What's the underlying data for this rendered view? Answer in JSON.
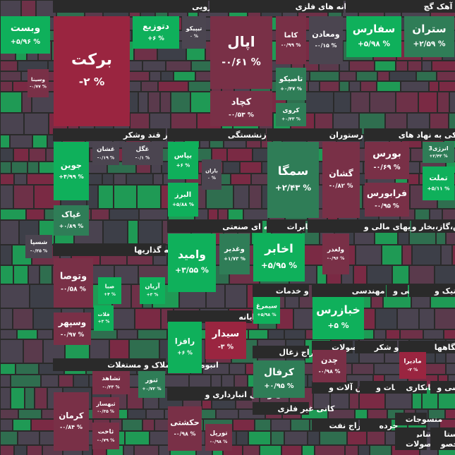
{
  "chart_data": {
    "type": "treemap",
    "groups": [
      "دارویی",
      "استخراج کانه های فلزی",
      "سیمان آهک گچ",
      "غذایی بجز قند وشکر",
      "بیمه و بازنشستگی",
      "هتل و رستوران",
      "فعالیتهای کمکی به نهاد های",
      "سرمایه گذاریها",
      "چندرشته ای صنعتی",
      "مخابرات",
      "واسطه گریهای مالی و",
      "عرضه برق،گاز،بخار و",
      "زراعت و خدمات",
      "فعالیت مهندسی",
      "فنی و",
      "لاستیک و",
      "رایانه",
      "انبوه سازی املاک و مستغلات",
      "استخراج زغال",
      "محصولات",
      "قند و شکر",
      "محصولات",
      "دستگاهها",
      "حمل و نقل انبارداری و",
      "ماشین آلات و",
      "اطلاعات و",
      "پیمانکاری",
      "کاشی و",
      "کانی غیر فلزی",
      "استخراج نفت",
      "خرده",
      "سایر",
      "استا",
      "منسوجات",
      "محصولات",
      "محصو"
    ],
    "categories": [
      "وبست",
      "برکت",
      "دتوزیع",
      "تیپیکو",
      "وسینا",
      "اپال",
      "کاما",
      "ومعادن",
      "تاصیکو",
      "کچاد",
      "کروی",
      "سفارس",
      "ستران",
      "جوین",
      "غشان",
      "غگل",
      "غپاک",
      "بپاس",
      "باران",
      "البرز",
      "سمگا",
      "گشان",
      "بورس",
      "انرژی3",
      "فرابورس",
      "تملت",
      "شسپا",
      "وتوصا",
      "صبا",
      "آریان",
      "فلات",
      "وسپهر",
      "وامید",
      "وغدیر",
      "اخابر",
      "ولغدر",
      "سیمرغ",
      "خبازرس",
      "سیدار",
      "رافزا",
      "چدن",
      "ماديرا",
      "کرفال",
      "ثنور",
      "تشاهد",
      "ثبهساز",
      "ثاخت",
      "کرمان",
      "حکشتی",
      "تورپل"
    ],
    "values": [
      5.96,
      -2,
      6,
      0,
      -0.77,
      -0.61,
      -0.99,
      -0.15,
      0.47,
      -0.53,
      0.43,
      5.98,
      2.59,
      4.99,
      -0.19,
      -0.1,
      0.89,
      6,
      0,
      5.88,
      2.43,
      -0.82,
      -0.69,
      2.43,
      -0.95,
      5.11,
      -0.25,
      -0.58,
      4,
      3,
      3,
      -0.97,
      3.55,
      1.73,
      5.95,
      -0.96,
      5.98,
      5,
      -3,
      6,
      -0.98,
      -2,
      0.95,
      0.72,
      -0.43,
      -0.35,
      -0.79,
      -0.84,
      -0.98,
      -0.98
    ],
    "value_labels": [
      "+۵/۹۶ %",
      "-۲ %",
      "+۶ %",
      "۰ %",
      "-۰/۷۷ %",
      "-۰/۶۱ %",
      "-۰/۹۹ %",
      "-۰/۱۵ %",
      "+۰/۴۷ %",
      "-۰/۵۳ %",
      "+۰/۴۳ %",
      "+۵/۹۸ %",
      "+۲/۵۹ %",
      "+۴/۹۹ %",
      "-۰/۱۹ %",
      "-۰/۱ %",
      "+۰/۸۹ %",
      "+۶ %",
      "۰ %",
      "+۵/۸۸ %",
      "+۲/۴۳ %",
      "-۰/۸۲ %",
      "-۰/۶۹ %",
      "+۲/۴۳ %",
      "-۰/۹۵ %",
      "+۵/۱۱ %",
      "-۰/۲۵ %",
      "-۰/۵۸ %",
      "+۴ %",
      "+۳ %",
      "+۳ %",
      "-۰/۹۷ %",
      "+۳/۵۵ %",
      "+۱/۷۳ %",
      "+۵/۹۵ %",
      "-۰/۹۶ %",
      "+۵/۹۸ %",
      "+۵ %",
      "-۳ %",
      "+۶ %",
      "-۰/۹۸ %",
      "-۲ %",
      "+۰/۹۵ %",
      "+۰/۷۲ %",
      "-۰/۴۳ %",
      "-۰/۳۵ %",
      "-۰/۷۹ %",
      "-۰/۸۴ %",
      "-۰/۹۸ %",
      "-۰/۹۸ %"
    ]
  }
}
